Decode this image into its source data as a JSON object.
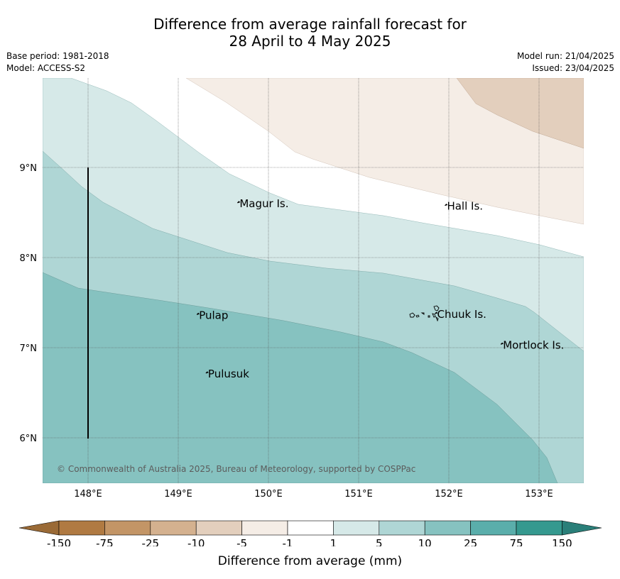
{
  "title": {
    "line1": "Difference from average rainfall forecast for",
    "line2": "28 April to 4 May 2025"
  },
  "meta": {
    "base_period": "Base period: 1981-2018",
    "model": "Model: ACCESS-S2",
    "model_run": "Model run: 21/04/2025",
    "issued": "Issued: 23/04/2025"
  },
  "map": {
    "lon_range": [
      147.5,
      153.5
    ],
    "lat_range": [
      5.5,
      10.0
    ],
    "lon_ticks": [
      {
        "value": 148,
        "label": "148°E"
      },
      {
        "value": 149,
        "label": "149°E"
      },
      {
        "value": 150,
        "label": "150°E"
      },
      {
        "value": 151,
        "label": "151°E"
      },
      {
        "value": 152,
        "label": "152°E"
      },
      {
        "value": 153,
        "label": "153°E"
      }
    ],
    "lat_ticks": [
      {
        "value": 6,
        "label": "6°N"
      },
      {
        "value": 7,
        "label": "7°N"
      },
      {
        "value": 8,
        "label": "8°N"
      },
      {
        "value": 9,
        "label": "9°N"
      }
    ],
    "places": [
      {
        "name": "Magur Is.",
        "lon": 149.68,
        "lat": 8.56
      },
      {
        "name": "Hall Is.",
        "lon": 151.98,
        "lat": 8.53
      },
      {
        "name": "Pulap",
        "lon": 149.23,
        "lat": 7.32
      },
      {
        "name": "Chuuk Is.",
        "lon": 151.87,
        "lat": 7.33
      },
      {
        "name": "Mortlock Is.",
        "lon": 152.6,
        "lat": 6.99
      },
      {
        "name": "Pulusuk",
        "lon": 149.33,
        "lat": 6.67
      }
    ],
    "copyright": "© Commonwealth of Australia 2025, Bureau of Meteorology, supported by COSPPac"
  },
  "colorbar": {
    "title": "Difference from average (mm)",
    "labels": [
      "-150",
      "-75",
      "-25",
      "-10",
      "-5",
      "-1",
      "1",
      "5",
      "10",
      "25",
      "75",
      "150"
    ],
    "colors": [
      "#b07a42",
      "#c39566",
      "#d4b18f",
      "#e3cfbd",
      "#f5ede6",
      "#ffffff",
      "#d6e9e8",
      "#afd6d5",
      "#86c2c0",
      "#5aaeab",
      "#35998f"
    ],
    "under_color": "#9a6a36",
    "over_color": "#2a7f79"
  }
}
